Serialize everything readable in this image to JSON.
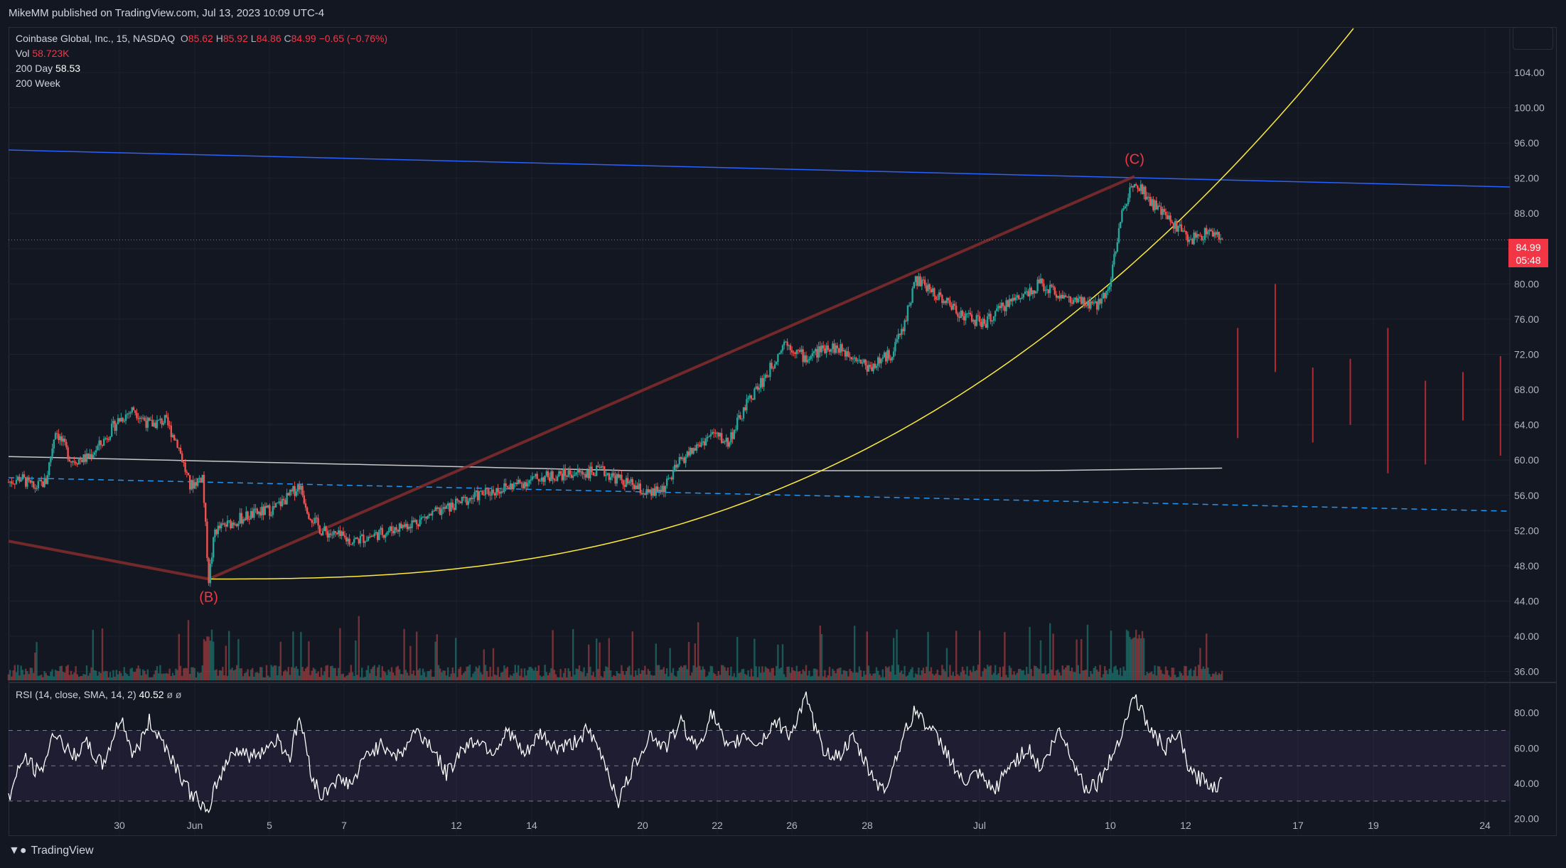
{
  "header": {
    "publisher_line": "MikeMM published on TradingView.com, Jul 13, 2023 10:09 UTC-4"
  },
  "legend": {
    "symbol": "Coinbase Global, Inc., 15, NASDAQ",
    "open_label": "O",
    "open": "85.62",
    "high_label": "H",
    "high": "85.92",
    "low_label": "L",
    "low": "84.86",
    "close_label": "C",
    "close": "84.99",
    "change": "−0.65 (−0.76%)",
    "vol_label": "Vol",
    "vol": "58.723K",
    "ma200d_label": "200 Day",
    "ma200d": "58.53",
    "ma200w_label": "200 Week"
  },
  "price_badge": {
    "price": "84.99",
    "countdown": "05:48"
  },
  "rsi_legend": {
    "label": "RSI (14, close, SMA, 14, 2)",
    "value": "40.52",
    "extra": "ø ø"
  },
  "footer": {
    "brand": "TradingView"
  },
  "colors": {
    "background": "#131722",
    "up": "#26a69a",
    "down": "#ef5350",
    "trendline_blue": "#2962ff",
    "dashed_blue": "#2196f3",
    "curve": "#ffeb3b",
    "wave_line": "#8b2d2d",
    "wave_label": "#f23645",
    "ma_line": "#c8c8c8",
    "rsi_line": "#ffffff"
  },
  "chart_data": [
    {
      "type": "candlestick",
      "title": "Coinbase Global, Inc., 15, NASDAQ",
      "x_tick_labels": [
        "30",
        "Jun",
        "5",
        "7",
        "12",
        "14",
        "20",
        "22",
        "26",
        "28",
        "Jul",
        "10",
        "12",
        "17",
        "19",
        "24"
      ],
      "y_tick_labels": [
        "36.00",
        "40.00",
        "44.00",
        "48.00",
        "52.00",
        "56.00",
        "60.00",
        "64.00",
        "68.00",
        "72.00",
        "76.00",
        "80.00",
        "84.00",
        "88.00",
        "92.00",
        "96.00",
        "100.00",
        "104.00"
      ],
      "ylim": [
        35,
        109
      ],
      "price_path": [
        [
          0,
          57.5
        ],
        [
          4,
          58.0
        ],
        [
          8,
          56.8
        ],
        [
          12,
          57.6
        ],
        [
          15,
          63.5
        ],
        [
          20,
          60.0
        ],
        [
          25,
          60.2
        ],
        [
          30,
          62.0
        ],
        [
          35,
          64.5
        ],
        [
          40,
          65.8
        ],
        [
          45,
          64.0
        ],
        [
          50,
          64.5
        ],
        [
          54,
          62.0
        ],
        [
          58,
          57.0
        ],
        [
          62,
          58.2
        ],
        [
          64,
          46.5
        ],
        [
          66,
          52.0
        ],
        [
          75,
          53.5
        ],
        [
          85,
          54.5
        ],
        [
          90,
          56.0
        ],
        [
          93,
          57.2
        ],
        [
          96,
          54.0
        ],
        [
          100,
          52.0
        ],
        [
          110,
          50.8
        ],
        [
          120,
          51.8
        ],
        [
          130,
          53.0
        ],
        [
          140,
          54.5
        ],
        [
          150,
          56.0
        ],
        [
          160,
          57.0
        ],
        [
          170,
          58.0
        ],
        [
          180,
          58.5
        ],
        [
          190,
          58.7
        ],
        [
          200,
          57.0
        ],
        [
          205,
          56.0
        ],
        [
          210,
          57.0
        ],
        [
          215,
          60.0
        ],
        [
          220,
          61.5
        ],
        [
          225,
          63.0
        ],
        [
          230,
          62.0
        ],
        [
          237,
          67.0
        ],
        [
          243,
          70.0
        ],
        [
          248,
          73.5
        ],
        [
          255,
          71.5
        ],
        [
          262,
          73.0
        ],
        [
          270,
          72.0
        ],
        [
          275,
          70.5
        ],
        [
          282,
          72.0
        ],
        [
          286,
          75.0
        ],
        [
          290,
          80.5
        ],
        [
          298,
          78.5
        ],
        [
          305,
          76.5
        ],
        [
          312,
          75.5
        ],
        [
          320,
          78.0
        ],
        [
          330,
          80.0
        ],
        [
          340,
          78.0
        ],
        [
          348,
          77.5
        ],
        [
          352,
          80.0
        ],
        [
          356,
          88.0
        ],
        [
          360,
          92.0
        ],
        [
          366,
          89.0
        ],
        [
          372,
          87.0
        ],
        [
          378,
          85.0
        ],
        [
          384,
          86.0
        ],
        [
          388,
          84.99
        ]
      ],
      "x_range": [
        0,
        480
      ],
      "ma_200_day": {
        "name": "200 Day",
        "last_value": 58.53
      },
      "annotations": [
        {
          "text": "(B)",
          "x": 64,
          "y": 46.5
        },
        {
          "text": "(C)",
          "x": 360,
          "y": 92.0
        }
      ],
      "current_price": 84.99,
      "projected_volume_bars": [
        [
          393,
          62.5,
          75.0
        ],
        [
          405,
          70.0,
          80.0
        ],
        [
          417,
          62.0,
          70.5
        ],
        [
          429,
          64.0,
          71.5
        ],
        [
          441,
          58.5,
          75.0
        ],
        [
          453,
          59.5,
          69.0
        ],
        [
          465,
          64.5,
          70.0
        ],
        [
          477,
          60.5,
          71.8
        ]
      ]
    },
    {
      "type": "line",
      "title": "RSI (14, close, SMA, 14, 2)",
      "y_tick_labels": [
        "20.00",
        "40.00",
        "60.00",
        "80.00"
      ],
      "ylim": [
        11,
        96
      ],
      "bands": [
        30,
        50,
        70
      ],
      "last_value": 40.52,
      "series": [
        {
          "name": "RSI",
          "values": [
            [
              0,
              32
            ],
            [
              5,
              55
            ],
            [
              10,
              45
            ],
            [
              15,
              70
            ],
            [
              20,
              55
            ],
            [
              25,
              62
            ],
            [
              30,
              50
            ],
            [
              36,
              78
            ],
            [
              40,
              55
            ],
            [
              45,
              75
            ],
            [
              50,
              62
            ],
            [
              55,
              45
            ],
            [
              58,
              35
            ],
            [
              62,
              28
            ],
            [
              64,
              20
            ],
            [
              66,
              38
            ],
            [
              72,
              60
            ],
            [
              78,
              55
            ],
            [
              86,
              65
            ],
            [
              90,
              55
            ],
            [
              93,
              78
            ],
            [
              97,
              45
            ],
            [
              100,
              32
            ],
            [
              104,
              42
            ],
            [
              110,
              40
            ],
            [
              115,
              58
            ],
            [
              120,
              62
            ],
            [
              125,
              55
            ],
            [
              130,
              70
            ],
            [
              135,
              62
            ],
            [
              140,
              45
            ],
            [
              145,
              60
            ],
            [
              150,
              65
            ],
            [
              155,
              58
            ],
            [
              160,
              70
            ],
            [
              165,
              55
            ],
            [
              170,
              68
            ],
            [
              175,
              60
            ],
            [
              180,
              62
            ],
            [
              185,
              70
            ],
            [
              190,
              55
            ],
            [
              195,
              30
            ],
            [
              200,
              50
            ],
            [
              205,
              68
            ],
            [
              210,
              60
            ],
            [
              215,
              75
            ],
            [
              220,
              60
            ],
            [
              225,
              80
            ],
            [
              230,
              58
            ],
            [
              235,
              68
            ],
            [
              240,
              62
            ],
            [
              245,
              75
            ],
            [
              250,
              68
            ],
            [
              255,
              88
            ],
            [
              260,
              60
            ],
            [
              265,
              55
            ],
            [
              270,
              65
            ],
            [
              275,
              48
            ],
            [
              280,
              35
            ],
            [
              285,
              62
            ],
            [
              290,
              82
            ],
            [
              295,
              70
            ],
            [
              300,
              58
            ],
            [
              305,
              40
            ],
            [
              310,
              45
            ],
            [
              315,
              35
            ],
            [
              320,
              50
            ],
            [
              326,
              60
            ],
            [
              330,
              48
            ],
            [
              336,
              70
            ],
            [
              340,
              55
            ],
            [
              344,
              38
            ],
            [
              348,
              40
            ],
            [
              352,
              52
            ],
            [
              356,
              70
            ],
            [
              360,
              90
            ],
            [
              365,
              70
            ],
            [
              370,
              60
            ],
            [
              374,
              68
            ],
            [
              378,
              45
            ],
            [
              382,
              42
            ],
            [
              386,
              38
            ],
            [
              388,
              40.5
            ]
          ]
        }
      ]
    }
  ]
}
